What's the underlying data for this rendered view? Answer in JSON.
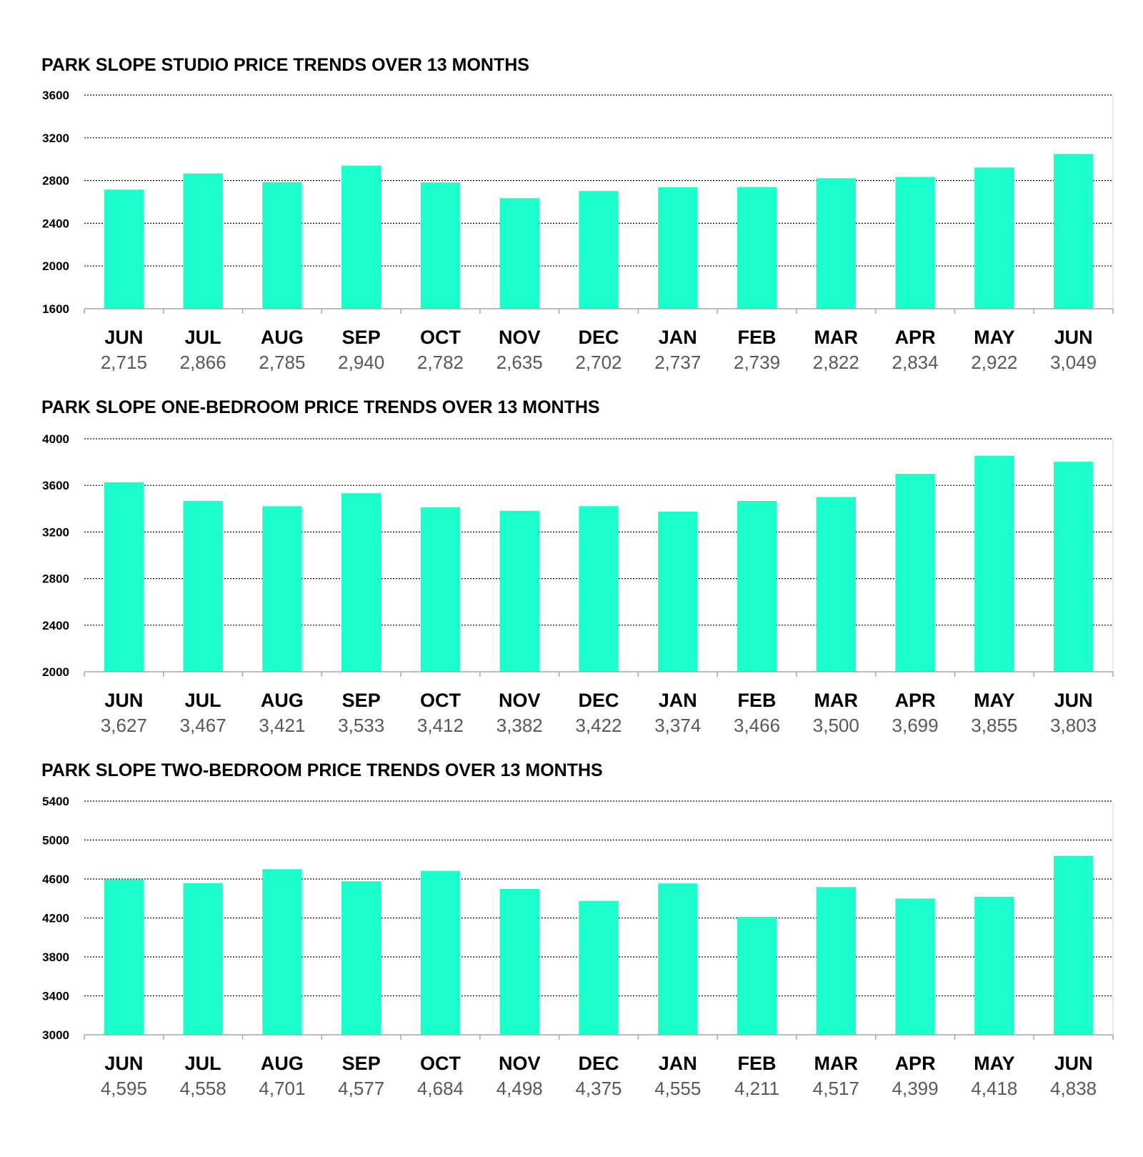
{
  "colors": {
    "bar": "#1cffcc"
  },
  "chart_data": [
    {
      "type": "bar",
      "title": "PARK SLOPE STUDIO PRICE TRENDS OVER 13 MONTHS",
      "categories": [
        "JUN",
        "JUL",
        "AUG",
        "SEP",
        "OCT",
        "NOV",
        "DEC",
        "JAN",
        "FEB",
        "MAR",
        "APR",
        "MAY",
        "JUN"
      ],
      "values": [
        2715,
        2866,
        2785,
        2940,
        2782,
        2635,
        2702,
        2737,
        2739,
        2822,
        2834,
        2922,
        3049
      ],
      "value_labels": [
        "2,715",
        "2,866",
        "2,785",
        "2,940",
        "2,782",
        "2,635",
        "2,702",
        "2,737",
        "2,739",
        "2,822",
        "2,834",
        "2,922",
        "3,049"
      ],
      "yticks": [
        1600,
        2000,
        2400,
        2800,
        3200,
        3600
      ],
      "ylim": [
        1600,
        3600
      ],
      "grid": true,
      "legend": "none"
    },
    {
      "type": "bar",
      "title": "PARK SLOPE ONE-BEDROOM PRICE TRENDS OVER 13 MONTHS",
      "categories": [
        "JUN",
        "JUL",
        "AUG",
        "SEP",
        "OCT",
        "NOV",
        "DEC",
        "JAN",
        "FEB",
        "MAR",
        "APR",
        "MAY",
        "JUN"
      ],
      "values": [
        3627,
        3467,
        3421,
        3533,
        3412,
        3382,
        3422,
        3374,
        3466,
        3500,
        3699,
        3855,
        3803
      ],
      "value_labels": [
        "3,627",
        "3,467",
        "3,421",
        "3,533",
        "3,412",
        "3,382",
        "3,422",
        "3,374",
        "3,466",
        "3,500",
        "3,699",
        "3,855",
        "3,803"
      ],
      "yticks": [
        2000,
        2400,
        2800,
        3200,
        3600,
        4000
      ],
      "ylim": [
        2000,
        4000
      ],
      "grid": true,
      "legend": "none"
    },
    {
      "type": "bar",
      "title": "PARK SLOPE TWO-BEDROOM PRICE TRENDS OVER 13 MONTHS",
      "categories": [
        "JUN",
        "JUL",
        "AUG",
        "SEP",
        "OCT",
        "NOV",
        "DEC",
        "JAN",
        "FEB",
        "MAR",
        "APR",
        "MAY",
        "JUN"
      ],
      "values": [
        4595,
        4558,
        4701,
        4577,
        4684,
        4498,
        4375,
        4555,
        4211,
        4517,
        4399,
        4418,
        4838
      ],
      "value_labels": [
        "4,595",
        "4,558",
        "4,701",
        "4,577",
        "4,684",
        "4,498",
        "4,375",
        "4,555",
        "4,211",
        "4,517",
        "4,399",
        "4,418",
        "4,838"
      ],
      "yticks": [
        3000,
        3400,
        3800,
        4200,
        4600,
        5000,
        5400
      ],
      "ylim": [
        3000,
        5400
      ],
      "grid": true,
      "legend": "none"
    }
  ]
}
